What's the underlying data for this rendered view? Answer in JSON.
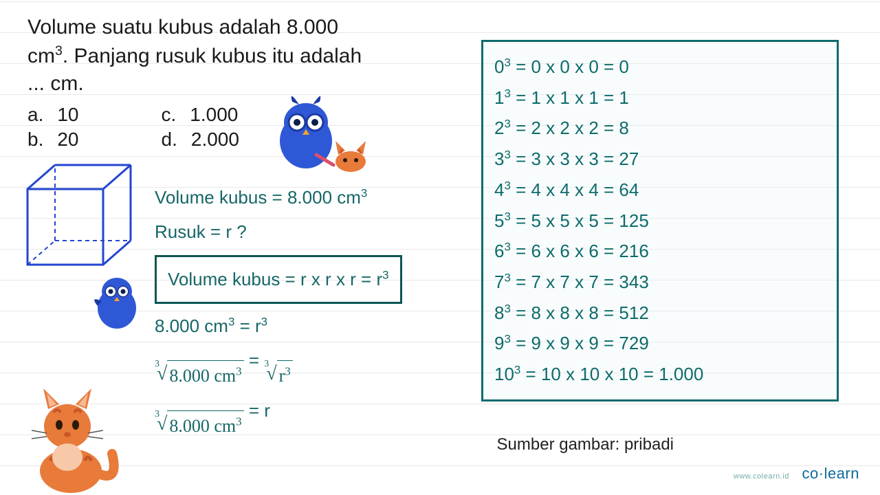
{
  "question": {
    "line1": "Volume suatu kubus adalah 8.000",
    "line2_prefix": "cm",
    "line2_exp": "3",
    "line2_suffix": ". Panjang rusuk kubus itu adalah",
    "line3": "... cm."
  },
  "options": {
    "a_label": "a.",
    "a_val": "10",
    "b_label": "b.",
    "b_val": "20",
    "c_label": "c.",
    "c_val": "1.000",
    "d_label": "d.",
    "d_val": "2.000"
  },
  "work": {
    "given_label": "Volume kubus = ",
    "given_value": "8.000 cm",
    "given_exp": "3",
    "rusuk": "Rusuk = r ?",
    "formula_prefix": "Volume kubus = r x r x r = r",
    "formula_exp": "3",
    "step1_lhs": "8.000 cm",
    "step1_lexp": "3",
    "step1_eq": " = r",
    "step1_rexp": "3",
    "step2_rootidx": "3",
    "step2_radicand": "8.000 cm",
    "step2_radicand_exp": "3",
    "step2_eq": " = ",
    "step2_rhs_radicand": "r",
    "step2_rhs_exp": "3",
    "step3_radicand": "8.000 cm",
    "step3_radicand_exp": "3",
    "step3_eq": " = r"
  },
  "cubes": [
    {
      "base": "0",
      "exp": "3",
      "expansion": "0 x 0 x 0",
      "result": "0"
    },
    {
      "base": "1",
      "exp": "3",
      "expansion": "1 x 1 x 1",
      "result": "1"
    },
    {
      "base": "2",
      "exp": "3",
      "expansion": "2 x 2 x 2",
      "result": "8"
    },
    {
      "base": "3",
      "exp": "3",
      "expansion": "3 x 3 x 3",
      "result": "27"
    },
    {
      "base": "4",
      "exp": "3",
      "expansion": "4 x 4 x 4",
      "result": "64"
    },
    {
      "base": "5",
      "exp": "3",
      "expansion": "5 x 5 x 5",
      "result": "125"
    },
    {
      "base": "6",
      "exp": "3",
      "expansion": "6 x 6 x 6",
      "result": "216"
    },
    {
      "base": "7",
      "exp": "3",
      "expansion": "7 x 7 x 7",
      "result": "343"
    },
    {
      "base": "8",
      "exp": "3",
      "expansion": "8 x 8 x 8",
      "result": "512"
    },
    {
      "base": "9",
      "exp": "3",
      "expansion": "9 x 9 x 9",
      "result": "729"
    },
    {
      "base": "10",
      "exp": "3",
      "expansion": "10 x 10 x 10",
      "result": "1.000"
    }
  ],
  "caption": "Sumber gambar: pribadi",
  "logo": {
    "url": "www.colearn.id",
    "brand": "co·learn"
  },
  "colors": {
    "teal": "#0d6b6b",
    "work_text": "#166666",
    "cube_stroke": "#2345d0",
    "owl_body": "#2f58d6",
    "owl_dark": "#1b3aa0",
    "cat_body": "#e87a3a",
    "cat_stripe": "#c7562a"
  }
}
